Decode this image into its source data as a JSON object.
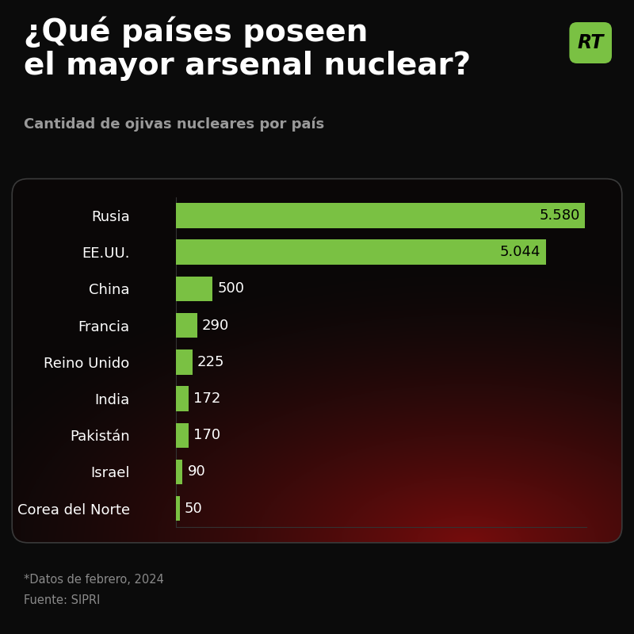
{
  "title": "¿Qué países poseen\nel mayor arsenal nuclear?",
  "subtitle": "Cantidad de ojivas nucleares por país",
  "logo": "RT",
  "notes": [
    "*Datos de febrero, 2024",
    "Fuente: SIPRI"
  ],
  "chart_data": {
    "type": "bar",
    "orientation": "horizontal",
    "categories": [
      "Rusia",
      "EE.UU.",
      "China",
      "Francia",
      "Reino Unido",
      "India",
      "Pakistán",
      "Israel",
      "Corea del Norte"
    ],
    "values": [
      5580,
      5044,
      500,
      290,
      225,
      172,
      170,
      90,
      50
    ],
    "value_labels": [
      "5.580",
      "5.044",
      "500",
      "290",
      "225",
      "172",
      "170",
      "90",
      "50"
    ],
    "color": "#7ac143",
    "xlim": [
      0,
      5600
    ],
    "data_labels": true,
    "tick_labels": "y",
    "grid": false
  }
}
